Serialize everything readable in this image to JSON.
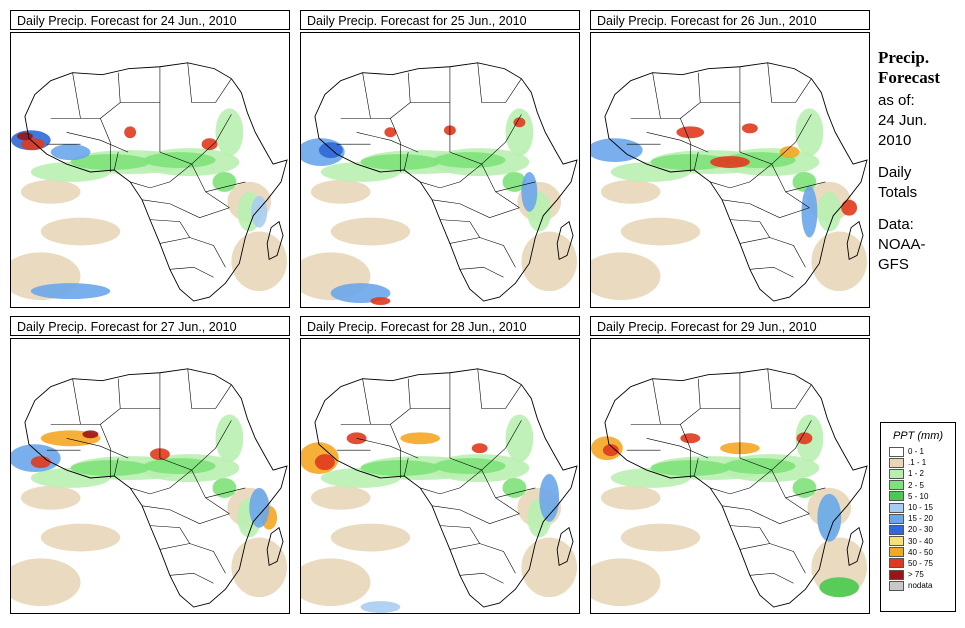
{
  "panels": [
    {
      "title": "Daily Precip. Forecast for  24 Jun., 2010"
    },
    {
      "title": "Daily Precip. Forecast for  25 Jun., 2010"
    },
    {
      "title": "Daily Precip. Forecast for  26 Jun., 2010"
    },
    {
      "title": "Daily Precip. Forecast for  27 Jun., 2010"
    },
    {
      "title": "Daily Precip. Forecast for  28 Jun., 2010"
    },
    {
      "title": "Daily Precip. Forecast for  29 Jun., 2010"
    }
  ],
  "side": {
    "heading1": "Precip.",
    "heading2": "Forecast",
    "asof": "as of:",
    "date1": "24 Jun.",
    "date2": "2010",
    "daily": "Daily",
    "totals": "Totals",
    "data": "Data:",
    "src1": "NOAA-",
    "src2": "GFS"
  },
  "legend": {
    "title": "PPT (mm)",
    "items": [
      {
        "label": "0 - 1",
        "color": "#ffffff"
      },
      {
        "label": ".1 - 1",
        "color": "#e8d6b8"
      },
      {
        "label": "1 - 2",
        "color": "#b8efb0"
      },
      {
        "label": "2 - 5",
        "color": "#7ee27a"
      },
      {
        "label": "5 - 10",
        "color": "#49c94d"
      },
      {
        "label": "10 - 15",
        "color": "#a8cdf2"
      },
      {
        "label": "15 - 20",
        "color": "#6aa6ea"
      },
      {
        "label": "20 - 30",
        "color": "#2d69d8"
      },
      {
        "label": "30 - 40",
        "color": "#f5e07a"
      },
      {
        "label": "40 - 50",
        "color": "#f5a623"
      },
      {
        "label": "50 - 75",
        "color": "#e03a1e"
      },
      {
        "label": "> 75",
        "color": "#9c1414"
      },
      {
        "label": "nodata",
        "color": "#c8c8c8"
      }
    ]
  }
}
